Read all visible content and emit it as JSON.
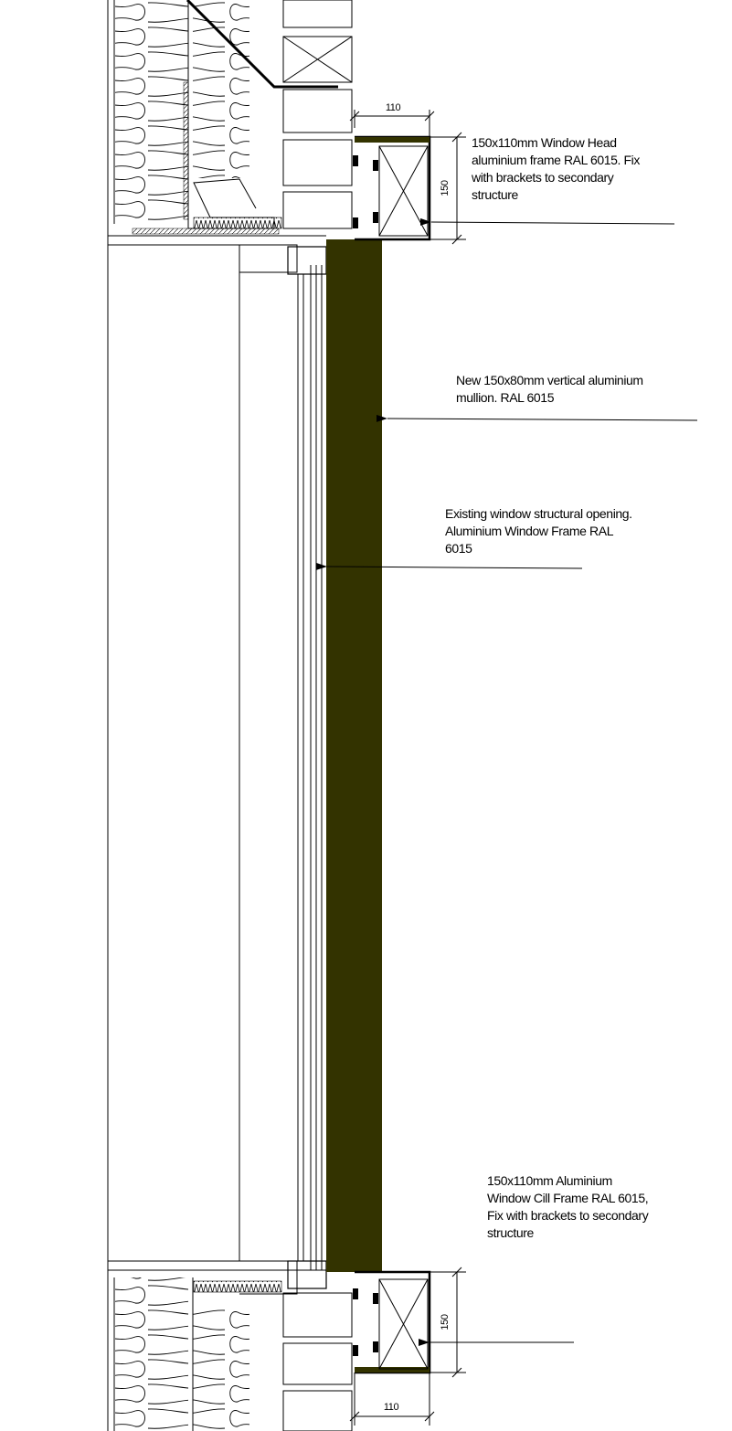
{
  "dimensions": {
    "head_width": "110",
    "head_height": "150",
    "cill_height": "150",
    "cill_width": "110"
  },
  "annotations": [
    {
      "lines": [
        "150x110mm Window Head",
        "aluminium frame RAL 6015. Fix",
        "with brackets to secondary",
        "structure"
      ]
    },
    {
      "lines": [
        "New 150x80mm vertical aluminium",
        "mullion.  RAL 6015"
      ]
    },
    {
      "lines": [
        "Existing window structural opening.",
        "Aluminium Window Frame RAL",
        "6015"
      ]
    },
    {
      "lines": [
        "150x110mm Aluminium",
        "Window Cill Frame RAL 6015,",
        "Fix with brackets to secondary",
        "structure"
      ]
    }
  ]
}
